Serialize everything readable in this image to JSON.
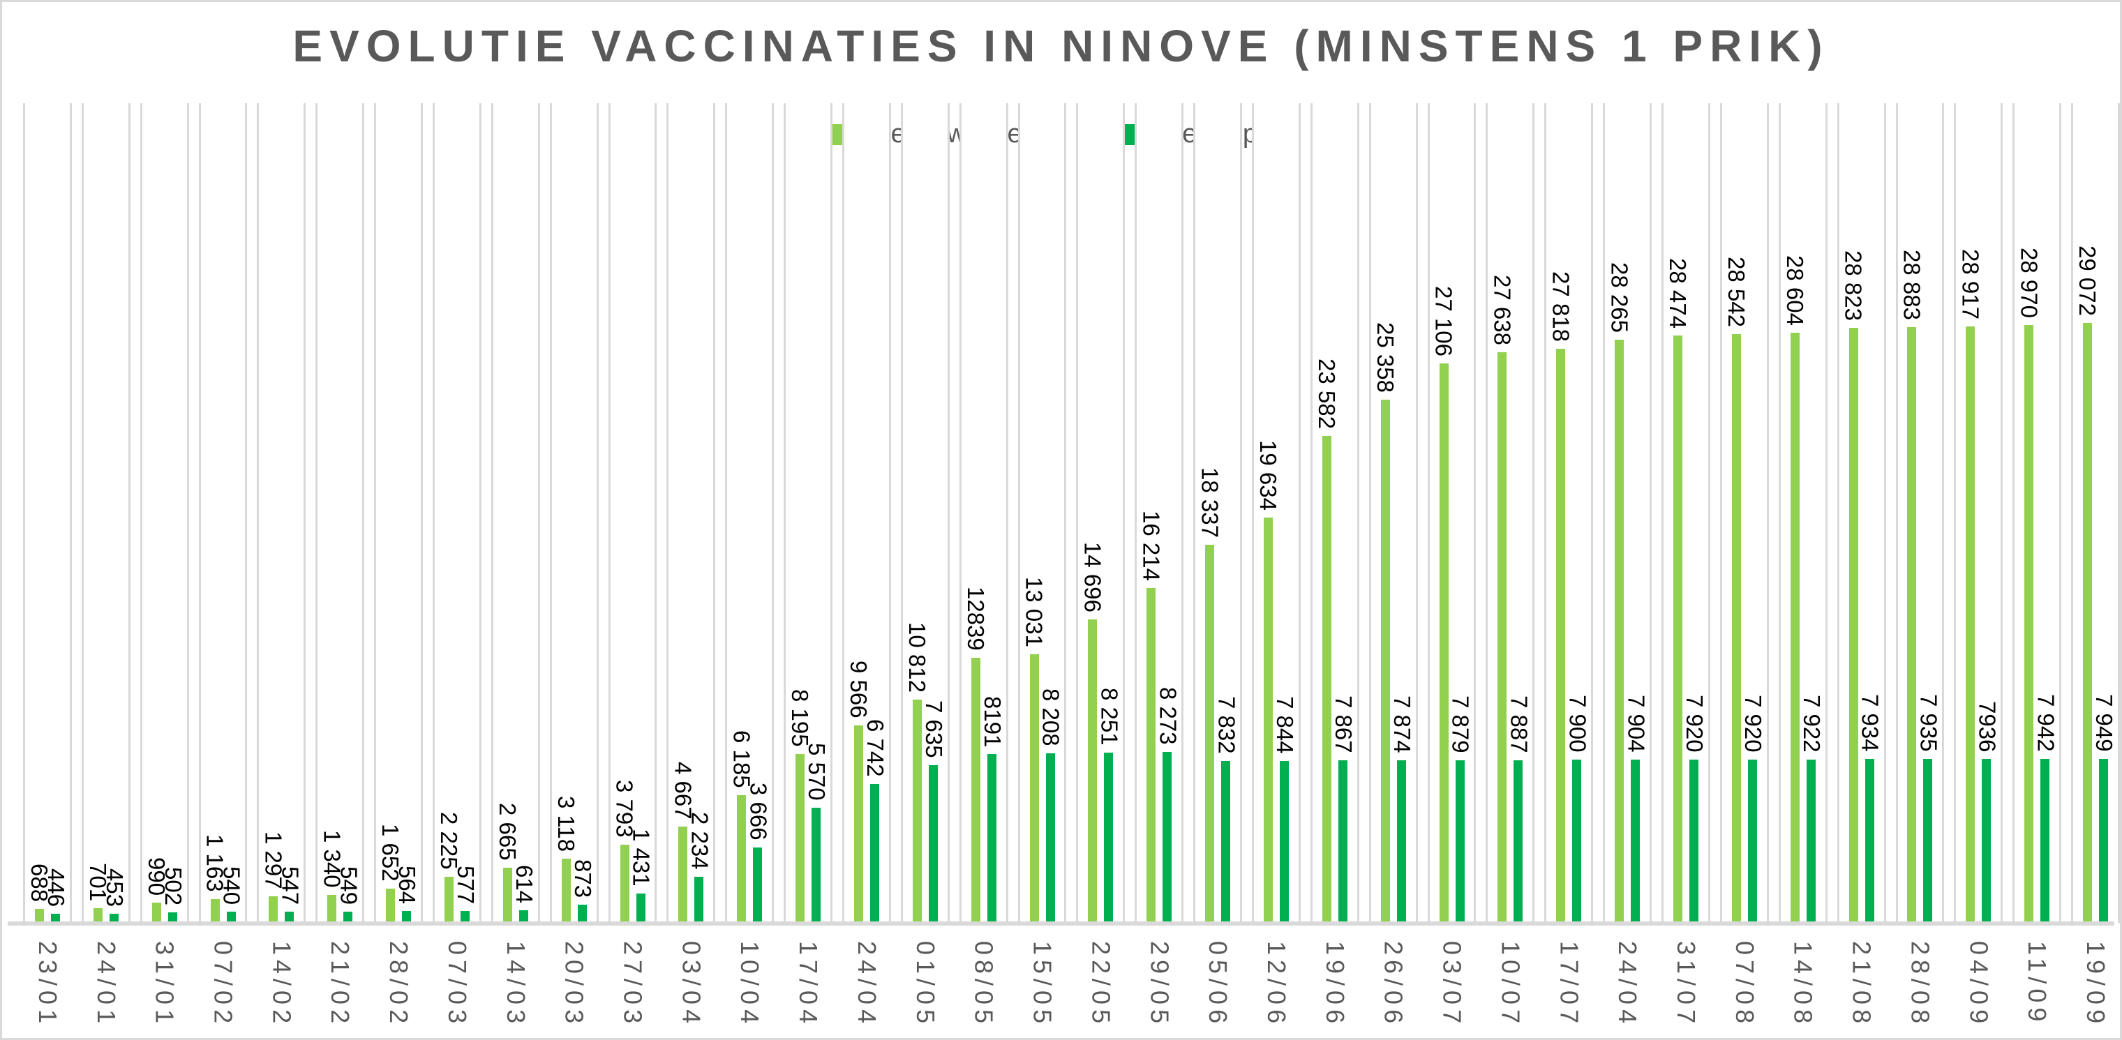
{
  "title": "EVOLUTIE VACCINATIES IN NINOVE (MINSTENS 1 PRIK)",
  "colors": {
    "adults": "#92D050",
    "seniors": "#00B050",
    "gridline": "#D9D9D9",
    "axis_text": "#595959",
    "title_text": "#595959",
    "data_label_text": "#000000"
  },
  "legend": {
    "items": [
      {
        "label": "Alle volwassenen",
        "color": "#92D050"
      },
      {
        "label": "Alle 65-plus",
        "color": "#00B050"
      }
    ]
  },
  "chart_data": {
    "type": "bar",
    "title": "EVOLUTIE VACCINATIES IN NINOVE (MINSTENS 1 PRIK)",
    "xlabel": "",
    "ylabel": "",
    "ylim": [
      0,
      29072
    ],
    "grid": "vertical-category-gridlines-only",
    "legend_position": "top-center",
    "bar_label_rotation": 90,
    "x_tick_rotation": 90,
    "categories": [
      "23/01",
      "24/01",
      "31/01",
      "07/02",
      "14/02",
      "21/02",
      "28/02",
      "07/03",
      "14/03",
      "20/03",
      "27/03",
      "03/04",
      "10/04",
      "17/04",
      "24/04",
      "01/05",
      "08/05",
      "15/05",
      "22/05",
      "29/05",
      "05/06",
      "12/06",
      "19/06",
      "26/06",
      "03/07",
      "10/07",
      "17/07",
      "24/04",
      "31/07",
      "07/08",
      "14/08",
      "21/08",
      "28/08",
      "04/09",
      "11/09",
      "19/09"
    ],
    "series": [
      {
        "name": "Alle volwassenen",
        "color": "#92D050",
        "values": [
          688,
          701,
          990,
          1163,
          1297,
          1340,
          1652,
          2225,
          2665,
          3118,
          3793,
          4667,
          6185,
          8195,
          9566,
          10812,
          12839,
          13031,
          14696,
          16214,
          18337,
          19634,
          23582,
          25358,
          27106,
          27638,
          27818,
          28265,
          28474,
          28542,
          28604,
          28823,
          28883,
          28917,
          28970,
          29072
        ],
        "labels": [
          "688",
          "701",
          "990",
          "1 163",
          "1 297",
          "1 340",
          "1 652",
          "2 225",
          "2 665",
          "3 118",
          "3 793",
          "4 667",
          "6 185",
          "8 195",
          "9 566",
          "10 812",
          "12839",
          "13 031",
          "14 696",
          "16 214",
          "18 337",
          "19 634",
          "23 582",
          "25 358",
          "27 106",
          "27 638",
          "27 818",
          "28 265",
          "28 474",
          "28 542",
          "28 604",
          "28 823",
          "28 883",
          "28 917",
          "28 970",
          "29 072"
        ]
      },
      {
        "name": "Alle 65-plus",
        "color": "#00B050",
        "values": [
          446,
          453,
          502,
          540,
          547,
          549,
          564,
          577,
          614,
          873,
          1431,
          2234,
          3666,
          5570,
          6742,
          7635,
          8191,
          8208,
          8251,
          8273,
          7832,
          7844,
          7867,
          7874,
          7879,
          7887,
          7900,
          7904,
          7920,
          7920,
          7922,
          7934,
          7935,
          7936,
          7942,
          7949
        ],
        "labels": [
          "446",
          "453",
          "502",
          "540",
          "547",
          "549",
          "564",
          "577",
          "614",
          "873",
          "1 431",
          "2 234",
          "3 666",
          "5 570",
          "6 742",
          "7 635",
          "8191",
          "8 208",
          "8 251",
          "8 273",
          "7 832",
          "7 844",
          "7 867",
          "7 874",
          "7 879",
          "7 887",
          "7 900",
          "7 904",
          "7 920",
          "7 920",
          "7 922",
          "7 934",
          "7 935",
          "7936",
          "7 942",
          "7 949"
        ]
      }
    ]
  }
}
